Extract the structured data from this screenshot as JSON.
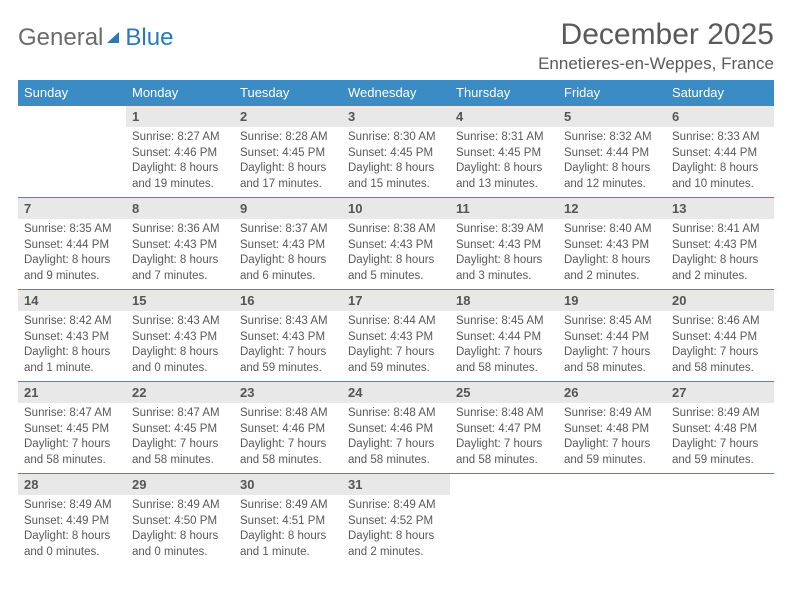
{
  "brand": {
    "part1": "General",
    "part2": "Blue"
  },
  "title": "December 2025",
  "location": "Ennetieres-en-Weppes, France",
  "columns": [
    "Sunday",
    "Monday",
    "Tuesday",
    "Wednesday",
    "Thursday",
    "Friday",
    "Saturday"
  ],
  "colors": {
    "header_bg": "#3b8bc4",
    "header_text": "#ffffff",
    "daynum_bg": "#e8e8e8",
    "text": "#595959",
    "border": "#3b8bc4"
  },
  "weeks": [
    [
      {
        "day": "",
        "sunrise": "",
        "sunset": "",
        "daylight": ""
      },
      {
        "day": "1",
        "sunrise": "8:27 AM",
        "sunset": "4:46 PM",
        "daylight": "8 hours and 19 minutes."
      },
      {
        "day": "2",
        "sunrise": "8:28 AM",
        "sunset": "4:45 PM",
        "daylight": "8 hours and 17 minutes."
      },
      {
        "day": "3",
        "sunrise": "8:30 AM",
        "sunset": "4:45 PM",
        "daylight": "8 hours and 15 minutes."
      },
      {
        "day": "4",
        "sunrise": "8:31 AM",
        "sunset": "4:45 PM",
        "daylight": "8 hours and 13 minutes."
      },
      {
        "day": "5",
        "sunrise": "8:32 AM",
        "sunset": "4:44 PM",
        "daylight": "8 hours and 12 minutes."
      },
      {
        "day": "6",
        "sunrise": "8:33 AM",
        "sunset": "4:44 PM",
        "daylight": "8 hours and 10 minutes."
      }
    ],
    [
      {
        "day": "7",
        "sunrise": "8:35 AM",
        "sunset": "4:44 PM",
        "daylight": "8 hours and 9 minutes."
      },
      {
        "day": "8",
        "sunrise": "8:36 AM",
        "sunset": "4:43 PM",
        "daylight": "8 hours and 7 minutes."
      },
      {
        "day": "9",
        "sunrise": "8:37 AM",
        "sunset": "4:43 PM",
        "daylight": "8 hours and 6 minutes."
      },
      {
        "day": "10",
        "sunrise": "8:38 AM",
        "sunset": "4:43 PM",
        "daylight": "8 hours and 5 minutes."
      },
      {
        "day": "11",
        "sunrise": "8:39 AM",
        "sunset": "4:43 PM",
        "daylight": "8 hours and 3 minutes."
      },
      {
        "day": "12",
        "sunrise": "8:40 AM",
        "sunset": "4:43 PM",
        "daylight": "8 hours and 2 minutes."
      },
      {
        "day": "13",
        "sunrise": "8:41 AM",
        "sunset": "4:43 PM",
        "daylight": "8 hours and 2 minutes."
      }
    ],
    [
      {
        "day": "14",
        "sunrise": "8:42 AM",
        "sunset": "4:43 PM",
        "daylight": "8 hours and 1 minute."
      },
      {
        "day": "15",
        "sunrise": "8:43 AM",
        "sunset": "4:43 PM",
        "daylight": "8 hours and 0 minutes."
      },
      {
        "day": "16",
        "sunrise": "8:43 AM",
        "sunset": "4:43 PM",
        "daylight": "7 hours and 59 minutes."
      },
      {
        "day": "17",
        "sunrise": "8:44 AM",
        "sunset": "4:43 PM",
        "daylight": "7 hours and 59 minutes."
      },
      {
        "day": "18",
        "sunrise": "8:45 AM",
        "sunset": "4:44 PM",
        "daylight": "7 hours and 58 minutes."
      },
      {
        "day": "19",
        "sunrise": "8:45 AM",
        "sunset": "4:44 PM",
        "daylight": "7 hours and 58 minutes."
      },
      {
        "day": "20",
        "sunrise": "8:46 AM",
        "sunset": "4:44 PM",
        "daylight": "7 hours and 58 minutes."
      }
    ],
    [
      {
        "day": "21",
        "sunrise": "8:47 AM",
        "sunset": "4:45 PM",
        "daylight": "7 hours and 58 minutes."
      },
      {
        "day": "22",
        "sunrise": "8:47 AM",
        "sunset": "4:45 PM",
        "daylight": "7 hours and 58 minutes."
      },
      {
        "day": "23",
        "sunrise": "8:48 AM",
        "sunset": "4:46 PM",
        "daylight": "7 hours and 58 minutes."
      },
      {
        "day": "24",
        "sunrise": "8:48 AM",
        "sunset": "4:46 PM",
        "daylight": "7 hours and 58 minutes."
      },
      {
        "day": "25",
        "sunrise": "8:48 AM",
        "sunset": "4:47 PM",
        "daylight": "7 hours and 58 minutes."
      },
      {
        "day": "26",
        "sunrise": "8:49 AM",
        "sunset": "4:48 PM",
        "daylight": "7 hours and 59 minutes."
      },
      {
        "day": "27",
        "sunrise": "8:49 AM",
        "sunset": "4:48 PM",
        "daylight": "7 hours and 59 minutes."
      }
    ],
    [
      {
        "day": "28",
        "sunrise": "8:49 AM",
        "sunset": "4:49 PM",
        "daylight": "8 hours and 0 minutes."
      },
      {
        "day": "29",
        "sunrise": "8:49 AM",
        "sunset": "4:50 PM",
        "daylight": "8 hours and 0 minutes."
      },
      {
        "day": "30",
        "sunrise": "8:49 AM",
        "sunset": "4:51 PM",
        "daylight": "8 hours and 1 minute."
      },
      {
        "day": "31",
        "sunrise": "8:49 AM",
        "sunset": "4:52 PM",
        "daylight": "8 hours and 2 minutes."
      },
      {
        "day": "",
        "sunrise": "",
        "sunset": "",
        "daylight": ""
      },
      {
        "day": "",
        "sunrise": "",
        "sunset": "",
        "daylight": ""
      },
      {
        "day": "",
        "sunrise": "",
        "sunset": "",
        "daylight": ""
      }
    ]
  ],
  "labels": {
    "sunrise": "Sunrise:",
    "sunset": "Sunset:",
    "daylight": "Daylight:"
  }
}
